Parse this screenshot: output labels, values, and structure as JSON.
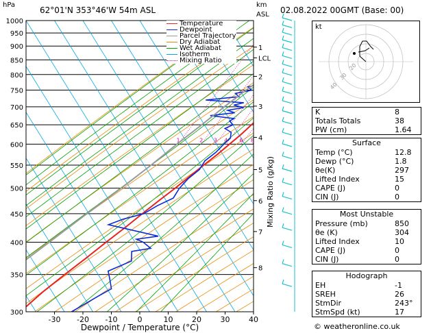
{
  "header": {
    "location": "62°01'N  353°46'W  54m  ASL",
    "datetime": "02.08.2022  00GMT  (Base: 00)",
    "pressure_unit": "hPa",
    "height_unit_km": "km",
    "height_unit_asl": "ASL"
  },
  "chart_data": {
    "type": "line",
    "xlabel": "Dewpoint / Temperature (°C)",
    "y2label": "Mixing Ratio (g/kg)",
    "x_ticks": [
      -30,
      -20,
      -10,
      0,
      10,
      20,
      30,
      40
    ],
    "xlim": [
      -40,
      40
    ],
    "pressure_levels": [
      300,
      350,
      400,
      450,
      500,
      550,
      600,
      650,
      700,
      750,
      800,
      850,
      900,
      950,
      1000
    ],
    "ylim_hpa": [
      1000,
      300
    ],
    "km_ticks": [
      {
        "label": "8",
        "p": 360
      },
      {
        "label": "7",
        "p": 418
      },
      {
        "label": "6",
        "p": 475
      },
      {
        "label": "5",
        "p": 540
      },
      {
        "label": "4",
        "p": 617
      },
      {
        "label": "3",
        "p": 702
      },
      {
        "label": "2",
        "p": 794
      },
      {
        "label": "LCL",
        "p": 857
      },
      {
        "label": "1",
        "p": 896
      }
    ],
    "mixing_ratio_labels": [
      "1",
      "2",
      "3",
      "4",
      "6",
      "8",
      "10",
      "15",
      "20",
      "25"
    ],
    "mixing_ratio_values": [
      1,
      2,
      3,
      4,
      6,
      8,
      10,
      15,
      20,
      25
    ],
    "legend": [
      "Temperature",
      "Dewpoint",
      "Parcel Trajectory",
      "Dry Adiabat",
      "Wet Adiabat",
      "Isotherm",
      "Mixing Ratio"
    ],
    "colors": {
      "temperature": "#e8231e",
      "dewpoint": "#0a2bd8",
      "parcel": "#9a9a9a",
      "dry": "#e88a00",
      "wet": "#00a000",
      "isotherm": "#00a8e8",
      "mixing": "#e000a0"
    },
    "series": [
      {
        "name": "Temperature",
        "points": [
          [
            1000,
            12.8
          ],
          [
            980,
            12
          ],
          [
            950,
            11
          ],
          [
            925,
            10
          ],
          [
            900,
            9
          ],
          [
            875,
            8
          ],
          [
            850,
            7
          ],
          [
            825,
            6.5
          ],
          [
            800,
            5.5
          ],
          [
            775,
            4.5
          ],
          [
            750,
            3
          ],
          [
            725,
            2
          ],
          [
            700,
            1
          ],
          [
            675,
            0
          ],
          [
            650,
            -1.5
          ],
          [
            625,
            -3
          ],
          [
            600,
            -5
          ],
          [
            575,
            -7
          ],
          [
            550,
            -9.5
          ],
          [
            525,
            -12
          ],
          [
            500,
            -14.5
          ],
          [
            475,
            -17.5
          ],
          [
            450,
            -20.5
          ],
          [
            425,
            -23.5
          ],
          [
            400,
            -27
          ],
          [
            375,
            -30.5
          ],
          [
            350,
            -34.5
          ],
          [
            325,
            -38.5
          ],
          [
            300,
            -42
          ]
        ]
      },
      {
        "name": "Dewpoint",
        "points": [
          [
            1000,
            1.8
          ],
          [
            980,
            0
          ],
          [
            960,
            -2
          ],
          [
            940,
            -4
          ],
          [
            920,
            -3
          ],
          [
            900,
            -1
          ],
          [
            880,
            -4
          ],
          [
            860,
            -6
          ],
          [
            850,
            -6
          ],
          [
            835,
            -5
          ],
          [
            820,
            -8
          ],
          [
            800,
            -9
          ],
          [
            790,
            -7
          ],
          [
            780,
            -10
          ],
          [
            770,
            -7
          ],
          [
            760,
            -11
          ],
          [
            750,
            -9
          ],
          [
            740,
            -14
          ],
          [
            730,
            -12
          ],
          [
            720,
            -23
          ],
          [
            712,
            -9
          ],
          [
            705,
            -12
          ],
          [
            698,
            -8
          ],
          [
            690,
            -13
          ],
          [
            683,
            -10
          ],
          [
            675,
            -18
          ],
          [
            667,
            -9
          ],
          [
            660,
            -10
          ],
          [
            650,
            -8
          ],
          [
            640,
            -10
          ],
          [
            630,
            -7
          ],
          [
            615,
            -6
          ],
          [
            600,
            -7
          ],
          [
            580,
            -8
          ],
          [
            560,
            -10
          ],
          [
            540,
            -10
          ],
          [
            520,
            -12
          ],
          [
            500,
            -13
          ],
          [
            480,
            -13
          ],
          [
            465,
            -17
          ],
          [
            450,
            -20
          ],
          [
            440,
            -26
          ],
          [
            430,
            -30
          ],
          [
            410,
            -10
          ],
          [
            405,
            -17
          ],
          [
            400,
            -14
          ],
          [
            390,
            -10
          ],
          [
            385,
            -16
          ],
          [
            370,
            -14
          ],
          [
            355,
            -20
          ],
          [
            345,
            -18
          ],
          [
            330,
            -15
          ],
          [
            320,
            -18
          ],
          [
            300,
            -24
          ]
        ]
      },
      {
        "name": "Parcel Trajectory",
        "points": [
          [
            1000,
            12.8
          ],
          [
            950,
            8
          ],
          [
            900,
            3
          ],
          [
            857,
            -1.5
          ],
          [
            800,
            -6.5
          ],
          [
            750,
            -11
          ],
          [
            700,
            -15
          ],
          [
            650,
            -19
          ],
          [
            600,
            -23.5
          ],
          [
            550,
            -28
          ],
          [
            500,
            -33.5
          ],
          [
            450,
            -40
          ],
          [
            400,
            -47
          ],
          [
            350,
            -55
          ],
          [
            300,
            -63
          ]
        ]
      }
    ]
  },
  "hodograph": {
    "label": "kt",
    "ring_labels": [
      "20",
      "30",
      "40"
    ]
  },
  "indices": {
    "k_label": "K",
    "k_value": "8",
    "tt_label": "Totals Totals",
    "tt_value": "38",
    "pw_label": "PW (cm)",
    "pw_value": "1.64"
  },
  "surface": {
    "title": "Surface",
    "rows": [
      {
        "label": "Temp (°C)",
        "value": "12.8"
      },
      {
        "label": "Dewp (°C)",
        "value": "1.8"
      },
      {
        "label": "θe(K)",
        "value": "297"
      },
      {
        "label": "Lifted Index",
        "value": "15"
      },
      {
        "label": "CAPE (J)",
        "value": "0"
      },
      {
        "label": "CIN (J)",
        "value": "0"
      }
    ]
  },
  "most_unstable": {
    "title": "Most Unstable",
    "rows": [
      {
        "label": "Pressure (mb)",
        "value": "850"
      },
      {
        "label": "θe (K)",
        "value": "304"
      },
      {
        "label": "Lifted Index",
        "value": "10"
      },
      {
        "label": "CAPE (J)",
        "value": "0"
      },
      {
        "label": "CIN (J)",
        "value": "0"
      }
    ]
  },
  "hodograph_table": {
    "title": "Hodograph",
    "rows": [
      {
        "label": "EH",
        "value": "-1"
      },
      {
        "label": "SREH",
        "value": "26"
      },
      {
        "label": "StmDir",
        "value": "243°"
      },
      {
        "label": "StmSpd (kt)",
        "value": "17"
      }
    ]
  },
  "credit": "© weatheronline.co.uk"
}
